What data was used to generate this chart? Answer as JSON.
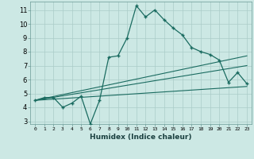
{
  "xlabel": "Humidex (Indice chaleur)",
  "ylabel": "",
  "bg_color": "#cce8e4",
  "grid_color": "#aaccc8",
  "line_color": "#1a6b60",
  "xlim": [
    -0.5,
    23.5
  ],
  "ylim": [
    2.8,
    11.6
  ],
  "yticks": [
    3,
    4,
    5,
    6,
    7,
    8,
    9,
    10,
    11
  ],
  "xticks": [
    0,
    1,
    2,
    3,
    4,
    5,
    6,
    7,
    8,
    9,
    10,
    11,
    12,
    13,
    14,
    15,
    16,
    17,
    18,
    19,
    20,
    21,
    22,
    23
  ],
  "curve_x": [
    0,
    1,
    2,
    3,
    4,
    5,
    6,
    7,
    8,
    9,
    10,
    11,
    12,
    13,
    14,
    15,
    16,
    17,
    18,
    19,
    20,
    21,
    22,
    23
  ],
  "curve_y": [
    4.5,
    4.7,
    4.7,
    4.0,
    4.3,
    4.8,
    2.8,
    4.5,
    7.6,
    7.7,
    9.0,
    11.3,
    10.5,
    11.0,
    10.3,
    9.7,
    9.2,
    8.3,
    8.0,
    7.8,
    7.4,
    5.8,
    6.5,
    5.7
  ],
  "line1_x": [
    0,
    23
  ],
  "line1_y": [
    4.5,
    7.7
  ],
  "line2_x": [
    0,
    23
  ],
  "line2_y": [
    4.5,
    7.0
  ],
  "line3_x": [
    0,
    23
  ],
  "line3_y": [
    4.5,
    5.5
  ]
}
